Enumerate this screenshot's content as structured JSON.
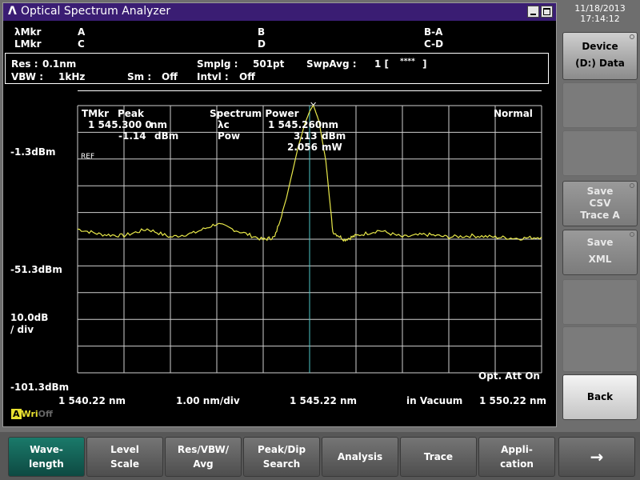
{
  "window": {
    "title": "Optical Spectrum Analyzer",
    "logo": "Λ"
  },
  "markers": {
    "lambda_mkr": "λMkr",
    "l_mkr": "LMkr",
    "a": "A",
    "c": "C",
    "b": "B",
    "d": "D",
    "ba": "B-A",
    "cd": "C-D"
  },
  "settings": {
    "res_label": "Res :",
    "res_value": "0.1nm",
    "vbw_label": "VBW :",
    "vbw_value": "1kHz",
    "sm_label": "Sm :",
    "sm_value": "Off",
    "smplg_label": "Smplg :",
    "smplg_value": "501pt",
    "intvl_label": "Intvl :",
    "intvl_value": "Off",
    "swpavg_label": "SwpAvg :",
    "swpavg_value": "1 [",
    "swpavg_stars": "****",
    "swpavg_close": "]"
  },
  "plot": {
    "tmkr": "TMkr",
    "peak": "Peak",
    "peak_wl": "1 545.300 0",
    "peak_wl_unit": "nm",
    "peak_lvl": "-1.14",
    "peak_lvl_unit": "dBm",
    "spectrum_power": "Spectrum Power",
    "lambda_c_label": "λc",
    "lambda_c": "1 545.260",
    "lambda_c_unit": "nm",
    "pow_label": "Pow",
    "pow_dbm": "3.13",
    "pow_dbm_unit": "dBm",
    "pow_mw": "2.056",
    "pow_mw_unit": "mW",
    "mode": "Normal",
    "ref": "REF",
    "opt_att": "Opt. Att On",
    "trace_color": "#e8e84a"
  },
  "axis": {
    "y_top": "-1.3dBm",
    "y_mid": "-51.3dBm",
    "y_bottom": "-101.3dBm",
    "y_div_line1": "10.0dB",
    "y_div_line2": "/ div",
    "x_left": "1 540.22 nm",
    "x_div": "1.00 nm/div",
    "x_center": "1 545.22 nm",
    "x_medium": "in Vacuum",
    "x_right": "1 550.22 nm"
  },
  "chart_data": {
    "type": "line",
    "title": "",
    "xlabel": "",
    "ylabel": "",
    "xlim": [
      1540.22,
      1550.22
    ],
    "ylim": [
      -101.3,
      -1.3
    ],
    "x": [
      1540.22,
      1540.72,
      1541.22,
      1541.72,
      1542.22,
      1542.72,
      1543.22,
      1543.72,
      1544.22,
      1544.47,
      1544.72,
      1544.97,
      1545.12,
      1545.22,
      1545.3,
      1545.42,
      1545.57,
      1545.72,
      1545.97,
      1546.22,
      1546.72,
      1547.22,
      1547.72,
      1548.22,
      1548.72,
      1549.22,
      1549.72,
      1550.22
    ],
    "y": [
      -47.5,
      -49.5,
      -50.0,
      -47.5,
      -50.5,
      -49.0,
      -45.5,
      -48.5,
      -51.5,
      -50.5,
      -36.0,
      -17.0,
      -8.0,
      -3.5,
      -1.14,
      -7.0,
      -22.0,
      -48.5,
      -51.5,
      -50.0,
      -48.0,
      -50.5,
      -49.5,
      -50.5,
      -50.0,
      -50.5,
      -51.0,
      -50.5
    ],
    "markers": [
      {
        "x": 1545.3,
        "y": -1.14
      }
    ]
  },
  "status": {
    "a": "A",
    "wri": "Wri",
    "off": "Off"
  },
  "datetime": {
    "date": "11/18/2013",
    "time": "17:14:12"
  },
  "side": {
    "device_line1": "Device",
    "device_line2": "(D:) Data",
    "csv_line1": "Save",
    "csv_line2": "CSV",
    "csv_line3": "Trace A",
    "xml_line1": "Save",
    "xml_line2": "XML",
    "back": "Back"
  },
  "bottom": [
    {
      "line1": "Wave-",
      "line2": "length"
    },
    {
      "line1": "Level",
      "line2": "Scale"
    },
    {
      "line1": "Res/VBW/",
      "line2": "Avg"
    },
    {
      "line1": "Peak/Dip",
      "line2": "Search"
    },
    {
      "line1": "Analysis",
      "line2": ""
    },
    {
      "line1": "Trace",
      "line2": ""
    },
    {
      "line1": "Appli-",
      "line2": "cation"
    },
    {
      "line1": "→",
      "line2": ""
    }
  ]
}
